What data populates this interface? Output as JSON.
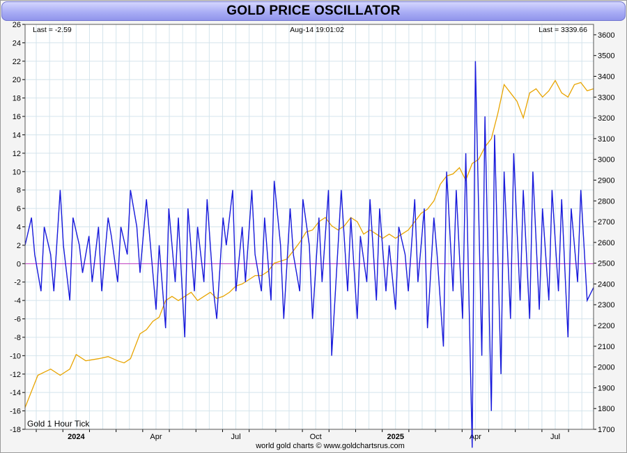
{
  "title": "GOLD PRICE OSCILLATOR",
  "header": {
    "last_osc": "Last = -2.59",
    "timestamp": "Aug-14  19:01:02",
    "last_price": "Last = 3339.66"
  },
  "footer_credit": "world gold charts © www.goldchartsrus.com",
  "series_note": "Gold 1 Hour Tick",
  "colors": {
    "oscillator": "#1a1adc",
    "oscillator_smooth": "#3aa6a0",
    "price": "#e8a400",
    "zero_line": "#c23bc2",
    "grid": "#d4e4ec",
    "plot_bg": "#ffffff",
    "title_bar": "#a9adf5"
  },
  "chart_data": {
    "type": "line",
    "title": "GOLD PRICE OSCILLATOR",
    "x_range": [
      2023.84,
      2025.62
    ],
    "left_axis": {
      "label": "",
      "ylim": [
        -18,
        26
      ],
      "ticks": [
        26,
        24,
        22,
        20,
        18,
        16,
        14,
        12,
        10,
        8,
        6,
        4,
        2,
        0,
        -2,
        -4,
        -6,
        -8,
        -10,
        -12,
        -14,
        -16,
        -18
      ]
    },
    "right_axis": {
      "label": "",
      "ylim": [
        1700,
        3650
      ],
      "ticks": [
        3600,
        3500,
        3400,
        3300,
        3200,
        3100,
        3000,
        2900,
        2800,
        2700,
        2600,
        2500,
        2400,
        2300,
        2200,
        2100,
        2000,
        1900,
        1800,
        1700
      ]
    },
    "x_ticks": [
      {
        "t": 2024.0,
        "label": "2024",
        "bold": true
      },
      {
        "t": 2024.25,
        "label": "Apr",
        "bold": false
      },
      {
        "t": 2024.5,
        "label": "Jul",
        "bold": false
      },
      {
        "t": 2024.75,
        "label": "Oct",
        "bold": false
      },
      {
        "t": 2025.0,
        "label": "2025",
        "bold": true
      },
      {
        "t": 2025.25,
        "label": "Apr",
        "bold": false
      },
      {
        "t": 2025.5,
        "label": "Jul",
        "bold": false
      }
    ],
    "grid": true,
    "zero_line": 0,
    "series": [
      {
        "name": "Gold 1 Hour Tick",
        "axis": "right",
        "t": [
          2023.84,
          2023.88,
          2023.92,
          2023.95,
          2023.98,
          2024.0,
          2024.03,
          2024.07,
          2024.1,
          2024.13,
          2024.15,
          2024.17,
          2024.2,
          2024.22,
          2024.24,
          2024.26,
          2024.28,
          2024.3,
          2024.32,
          2024.34,
          2024.36,
          2024.38,
          2024.4,
          2024.42,
          2024.44,
          2024.46,
          2024.48,
          2024.5,
          2024.52,
          2024.54,
          2024.56,
          2024.58,
          2024.6,
          2024.62,
          2024.64,
          2024.66,
          2024.68,
          2024.7,
          2024.72,
          2024.74,
          2024.76,
          2024.78,
          2024.8,
          2024.82,
          2024.84,
          2024.86,
          2024.88,
          2024.9,
          2024.92,
          2024.94,
          2024.96,
          2024.98,
          2025.0,
          2025.02,
          2025.04,
          2025.06,
          2025.08,
          2025.1,
          2025.12,
          2025.14,
          2025.16,
          2025.18,
          2025.2,
          2025.22,
          2025.24,
          2025.26,
          2025.28,
          2025.3,
          2025.32,
          2025.34,
          2025.36,
          2025.38,
          2025.4,
          2025.42,
          2025.44,
          2025.46,
          2025.48,
          2025.5,
          2025.52,
          2025.54,
          2025.56,
          2025.58,
          2025.6,
          2025.62
        ],
        "values": [
          1805,
          1960,
          1990,
          1960,
          1990,
          2060,
          2030,
          2040,
          2050,
          2030,
          2020,
          2040,
          2160,
          2180,
          2220,
          2240,
          2320,
          2340,
          2320,
          2340,
          2360,
          2320,
          2340,
          2360,
          2330,
          2340,
          2360,
          2390,
          2400,
          2420,
          2440,
          2440,
          2460,
          2500,
          2510,
          2520,
          2560,
          2600,
          2650,
          2660,
          2700,
          2720,
          2680,
          2660,
          2680,
          2720,
          2700,
          2640,
          2660,
          2640,
          2620,
          2640,
          2620,
          2640,
          2660,
          2700,
          2740,
          2760,
          2800,
          2880,
          2920,
          2930,
          2960,
          2900,
          2980,
          3000,
          3060,
          3100,
          3220,
          3360,
          3320,
          3280,
          3200,
          3320,
          3340,
          3300,
          3330,
          3380,
          3320,
          3300,
          3360,
          3370,
          3330,
          3340
        ]
      },
      {
        "name": "",
        "axis": "left",
        "t": [
          2023.84,
          2023.86,
          2023.87,
          2023.89,
          2023.9,
          2023.92,
          2023.93,
          2023.95,
          2023.96,
          2023.98,
          2023.99,
          2024.01,
          2024.02,
          2024.04,
          2024.05,
          2024.07,
          2024.08,
          2024.1,
          2024.11,
          2024.13,
          2024.14,
          2024.16,
          2024.17,
          2024.19,
          2024.2,
          2024.22,
          2024.23,
          2024.25,
          2024.26,
          2024.28,
          2024.29,
          2024.31,
          2024.32,
          2024.34,
          2024.35,
          2024.37,
          2024.38,
          2024.4,
          2024.41,
          2024.43,
          2024.44,
          2024.46,
          2024.47,
          2024.49,
          2024.5,
          2024.52,
          2024.53,
          2024.55,
          2024.56,
          2024.58,
          2024.59,
          2024.61,
          2024.62,
          2024.64,
          2024.65,
          2024.67,
          2024.68,
          2024.7,
          2024.71,
          2024.73,
          2024.74,
          2024.76,
          2024.77,
          2024.79,
          2024.8,
          2024.82,
          2024.83,
          2024.85,
          2024.86,
          2024.88,
          2024.89,
          2024.91,
          2024.92,
          2024.94,
          2024.95,
          2024.97,
          2024.98,
          2025.0,
          2025.01,
          2025.03,
          2025.04,
          2025.06,
          2025.07,
          2025.09,
          2025.1,
          2025.12,
          2025.13,
          2025.15,
          2025.16,
          2025.18,
          2025.19,
          2025.21,
          2025.22,
          2025.24,
          2025.25,
          2025.27,
          2025.28,
          2025.3,
          2025.31,
          2025.33,
          2025.34,
          2025.36,
          2025.37,
          2025.39,
          2025.4,
          2025.42,
          2025.43,
          2025.45,
          2025.46,
          2025.48,
          2025.49,
          2025.51,
          2025.52,
          2025.54,
          2025.55,
          2025.57,
          2025.58,
          2025.6,
          2025.62
        ],
        "values": [
          2,
          5,
          1,
          -3,
          4,
          1,
          -3,
          8,
          2,
          -4,
          5,
          2,
          -1,
          3,
          -2,
          4,
          -3,
          5,
          3,
          -2,
          4,
          1,
          8,
          4,
          -1,
          7,
          3,
          -5,
          2,
          -7,
          6,
          -2,
          5,
          -8,
          6,
          -3,
          4,
          -2,
          7,
          -3,
          -6,
          5,
          2,
          8,
          -3,
          4,
          -2,
          8,
          1,
          -3,
          5,
          -4,
          9,
          2,
          -6,
          6,
          1,
          -3,
          7,
          2,
          -6,
          5,
          -2,
          8,
          -10,
          2,
          8,
          -3,
          5,
          -6,
          3,
          -2,
          7,
          -4,
          6,
          -3,
          2,
          -5,
          4,
          1,
          -3,
          7,
          -2,
          6,
          -7,
          5,
          1,
          -9,
          10,
          -3,
          8,
          -6,
          12,
          -20,
          22,
          -10,
          16,
          -16,
          14,
          -12,
          10,
          -6,
          12,
          -4,
          8,
          -6,
          10,
          -5,
          6,
          -4,
          8,
          -3,
          7,
          -8,
          6,
          -2,
          8,
          -4,
          -2.59
        ]
      }
    ]
  }
}
